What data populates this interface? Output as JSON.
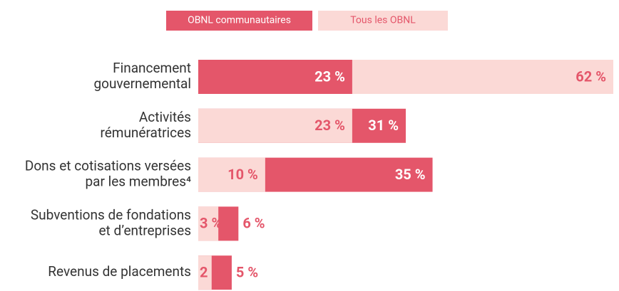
{
  "chart_data": {
    "type": "bar",
    "orientation": "horizontal",
    "categories": [
      [
        "Financement",
        "gouvernemental"
      ],
      [
        "Activités",
        "rémunératrices"
      ],
      [
        "Dons et cotisations versées",
        "par les membres⁴"
      ],
      [
        "Subventions de fondations",
        "et d’entreprises"
      ],
      [
        "Revenus de placements"
      ]
    ],
    "series": [
      {
        "name": "OBNL communautaires",
        "color": "#e4566a",
        "values": [
          23,
          31,
          35,
          6,
          5
        ],
        "value_labels": [
          "23 %",
          "31 %",
          "35 %",
          "6 %",
          "5 %"
        ]
      },
      {
        "name": "Tous les OBNL",
        "color": "#fbd9d6",
        "values": [
          62,
          23,
          10,
          3,
          2
        ],
        "value_labels": [
          "62 %",
          "23 %",
          "10 %",
          "3 %",
          "2 %"
        ]
      }
    ],
    "legend": "top"
  }
}
